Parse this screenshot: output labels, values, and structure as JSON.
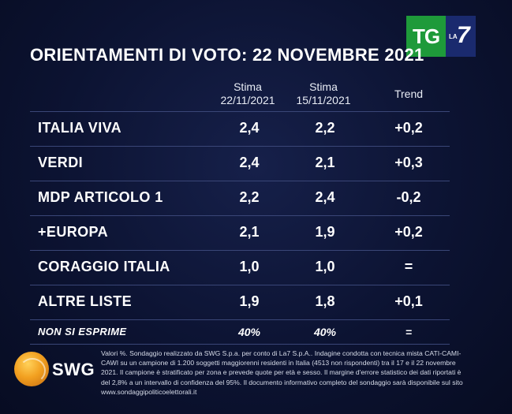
{
  "title": "ORIENTAMENTI DI VOTO: 22 NOVEMBRE 2021",
  "logo": {
    "tg": "TG",
    "la": "LA",
    "seven": "7"
  },
  "columns": {
    "c1_line1": "Stima",
    "c1_line2": "22/11/2021",
    "c2_line1": "Stima",
    "c2_line2": "15/11/2021",
    "c3": "Trend"
  },
  "chart_data": {
    "type": "table",
    "columns": [
      "Stima 22/11/2021",
      "Stima 15/11/2021",
      "Trend"
    ],
    "rows": [
      {
        "party": "ITALIA VIVA",
        "v1": "2,4",
        "v2": "2,2",
        "trend": "+0,2"
      },
      {
        "party": "VERDI",
        "v1": "2,4",
        "v2": "2,1",
        "trend": "+0,3"
      },
      {
        "party": "MDP ARTICOLO 1",
        "v1": "2,2",
        "v2": "2,4",
        "trend": "-0,2"
      },
      {
        "party": "+EUROPA",
        "v1": "2,1",
        "v2": "1,9",
        "trend": "+0,2"
      },
      {
        "party": "CORAGGIO ITALIA",
        "v1": "1,0",
        "v2": "1,0",
        "trend": "="
      },
      {
        "party": "ALTRE LISTE",
        "v1": "1,9",
        "v2": "1,8",
        "trend": "+0,1"
      },
      {
        "party": "NON SI ESPRIME",
        "v1": "40%",
        "v2": "40%",
        "trend": "="
      }
    ]
  },
  "footer": {
    "brand": "SWG",
    "note": "Valori %. Sondaggio realizzato da SWG S.p.a. per conto di La7 S.p.A.. Indagine condotta con tecnica mista CATI-CAMI-CAWI su un campione di 1.200 soggetti maggiorenni residenti in Italia (4513 non rispondenti) tra il 17 e il 22 novembre 2021. Il campione è stratificato per zona e prevede quote per età e sesso. Il margine d'errore statistico dei dati riportati è del 2,8% a un intervallo di confidenza del 95%. Il documento informativo completo del sondaggio sarà disponibile sul sito www.sondaggipoliticoelettorali.it"
  }
}
